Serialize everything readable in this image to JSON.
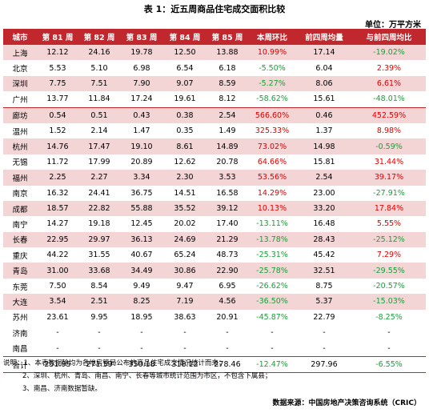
{
  "title": "表 1：近五周商品住宅成交面积比较",
  "unit": "单位：万平方米",
  "headers": [
    "城市",
    "第 81 周",
    "第 82 周",
    "第 83 周",
    "第 84 周",
    "第 85 周",
    "本周环比",
    "前四周均量",
    "与前四周均比"
  ],
  "rows": [
    [
      "上海",
      "12.12",
      "24.16",
      "19.78",
      "12.50",
      "13.88",
      "10.99%",
      "17.14",
      "-19.02%"
    ],
    [
      "北京",
      "5.53",
      "5.10",
      "6.98",
      "6.54",
      "6.18",
      "-5.50%",
      "6.04",
      "2.39%"
    ],
    [
      "深圳",
      "7.75",
      "7.51",
      "7.90",
      "9.07",
      "8.59",
      "-5.27%",
      "8.06",
      "6.61%"
    ],
    [
      "广州",
      "13.77",
      "11.84",
      "17.24",
      "19.61",
      "8.12",
      "-58.62%",
      "15.61",
      "-48.01%"
    ],
    [
      "廊坊",
      "0.54",
      "0.51",
      "0.43",
      "0.38",
      "2.54",
      "566.60%",
      "0.46",
      "452.59%"
    ],
    [
      "温州",
      "1.52",
      "2.14",
      "1.47",
      "0.35",
      "1.49",
      "325.33%",
      "1.37",
      "8.98%"
    ],
    [
      "杭州",
      "14.76",
      "17.47",
      "19.10",
      "8.61",
      "14.89",
      "73.02%",
      "14.98",
      "-0.59%"
    ],
    [
      "无锡",
      "11.72",
      "17.99",
      "20.89",
      "12.62",
      "20.78",
      "64.66%",
      "15.81",
      "31.44%"
    ],
    [
      "福州",
      "2.25",
      "2.27",
      "3.34",
      "2.30",
      "3.53",
      "53.56%",
      "2.54",
      "39.17%"
    ],
    [
      "南京",
      "16.32",
      "24.41",
      "36.75",
      "14.51",
      "16.58",
      "14.29%",
      "23.00",
      "-27.91%"
    ],
    [
      "成都",
      "18.57",
      "22.82",
      "55.88",
      "35.52",
      "39.12",
      "10.13%",
      "33.20",
      "17.84%"
    ],
    [
      "南宁",
      "14.27",
      "19.18",
      "12.45",
      "20.02",
      "17.40",
      "-13.11%",
      "16.48",
      "5.55%"
    ],
    [
      "长春",
      "22.95",
      "29.97",
      "36.13",
      "24.69",
      "21.29",
      "-13.78%",
      "28.43",
      "-25.12%"
    ],
    [
      "重庆",
      "44.22",
      "31.55",
      "40.67",
      "65.24",
      "48.73",
      "-25.31%",
      "45.42",
      "7.29%"
    ],
    [
      "青岛",
      "31.00",
      "33.68",
      "34.49",
      "30.86",
      "22.90",
      "-25.78%",
      "32.51",
      "-29.55%"
    ],
    [
      "东莞",
      "7.50",
      "8.54",
      "9.49",
      "9.47",
      "6.95",
      "-26.62%",
      "8.75",
      "-20.57%"
    ],
    [
      "大连",
      "3.54",
      "2.51",
      "8.25",
      "7.19",
      "4.56",
      "-36.50%",
      "5.37",
      "-15.03%"
    ],
    [
      "苏州",
      "23.61",
      "9.95",
      "18.95",
      "38.63",
      "20.91",
      "-45.87%",
      "22.79",
      "-8.25%"
    ],
    [
      "济南",
      "-",
      "-",
      "-",
      "-",
      "-",
      "-",
      "-",
      "-"
    ],
    [
      "南昌",
      "-",
      "-",
      "-",
      "-",
      "-",
      "-",
      "-",
      "-"
    ]
  ],
  "total": [
    "合计",
    "251.95",
    "271.59",
    "350.18",
    "318.12",
    "278.46",
    "-12.47%",
    "297.96",
    "-6.55%"
  ],
  "notes": [
    "说明：1、本表数据除均为各地房管局公布的商品住宅成交情况统计而来；",
    "2、深圳、杭州、青岛、南昌、南宁、长春等城市统计范围为市区，不包含下属县；",
    "3、南昌、济南数据暂缺。"
  ],
  "source": "数据来源：中国房地产决策咨询系统（CRIC）",
  "colors": {
    "header_bg": "#c0282e",
    "pink_row": "#f4d5d6",
    "positive": "#e00000",
    "negative": "#1a9e3a"
  }
}
